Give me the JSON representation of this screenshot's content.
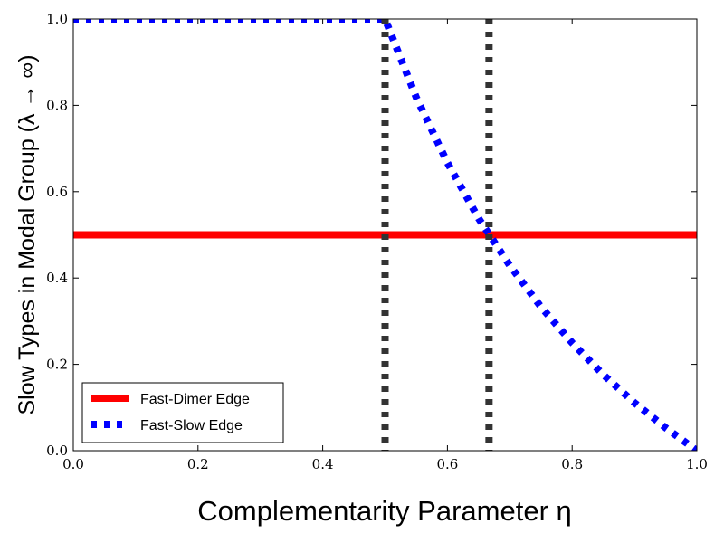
{
  "chart_data": {
    "type": "line",
    "title": "",
    "xlabel": "Complementarity Parameter η",
    "ylabel": "Slow Types in Modal Group (λ → ∞)",
    "xlim": [
      0.0,
      1.0
    ],
    "ylim": [
      0.0,
      1.0
    ],
    "xticks": [
      "0.0",
      "0.2",
      "0.4",
      "0.6",
      "0.8",
      "1.0"
    ],
    "yticks": [
      "0.0",
      "0.2",
      "0.4",
      "0.6",
      "0.8",
      "1.0"
    ],
    "grid": false,
    "legend_position": "lower-left",
    "series": [
      {
        "name": "Fast-Dimer Edge",
        "color": "#ff0000",
        "style": "solid",
        "x": [
          0.0,
          1.0
        ],
        "y": [
          0.5,
          0.5
        ]
      },
      {
        "name": "Fast-Slow Edge",
        "color": "#0000ff",
        "style": "dotted",
        "x": [
          0.0,
          0.5,
          0.55,
          0.6,
          0.65,
          0.7,
          0.75,
          0.8,
          0.85,
          0.9,
          0.95,
          1.0
        ],
        "y": [
          1.0,
          1.0,
          0.818,
          0.667,
          0.538,
          0.429,
          0.333,
          0.25,
          0.176,
          0.111,
          0.053,
          0.0
        ]
      }
    ],
    "vertical_lines": [
      {
        "x": 0.5,
        "color": "#333333",
        "style": "dotted"
      },
      {
        "x": 0.6667,
        "color": "#333333",
        "style": "dotted"
      }
    ]
  }
}
